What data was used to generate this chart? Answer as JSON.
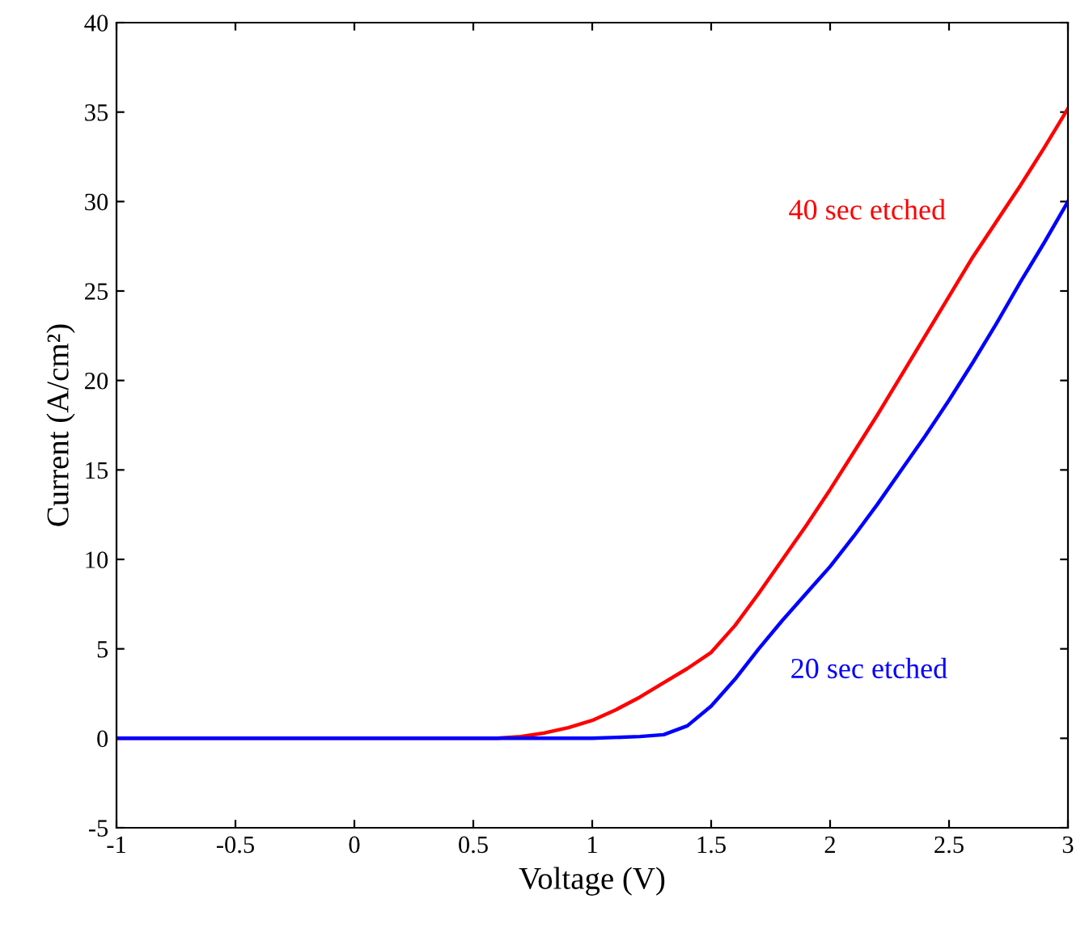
{
  "chart_data": {
    "type": "line",
    "xlabel": "Voltage (V)",
    "ylabel": "Current (A/cm²)",
    "xlim": [
      -1,
      3
    ],
    "ylim": [
      -5,
      40
    ],
    "xticks": [
      -1,
      -0.5,
      0,
      0.5,
      1,
      1.5,
      2,
      2.5,
      3
    ],
    "yticks": [
      -5,
      0,
      5,
      10,
      15,
      20,
      25,
      30,
      35,
      40
    ],
    "grid": false,
    "legend": false,
    "series": [
      {
        "name": "40 sec etched",
        "color": "#ff0000",
        "x": [
          -1,
          0,
          0.6,
          0.7,
          0.8,
          0.9,
          1.0,
          1.1,
          1.2,
          1.3,
          1.4,
          1.5,
          1.6,
          1.7,
          1.8,
          1.9,
          2.0,
          2.1,
          2.2,
          2.3,
          2.4,
          2.5,
          2.6,
          2.7,
          2.8,
          2.9,
          3.0
        ],
        "values": [
          0,
          0,
          0,
          0.1,
          0.3,
          0.6,
          1.0,
          1.6,
          2.3,
          3.1,
          3.9,
          4.8,
          6.3,
          8.1,
          10.0,
          11.9,
          13.9,
          16.0,
          18.1,
          20.3,
          22.5,
          24.7,
          26.9,
          28.9,
          30.9,
          33.0,
          35.2
        ]
      },
      {
        "name": "20 sec etched",
        "color": "#0000ff",
        "x": [
          -1,
          0,
          1.0,
          1.2,
          1.3,
          1.4,
          1.5,
          1.6,
          1.7,
          1.8,
          1.9,
          2.0,
          2.1,
          2.2,
          2.3,
          2.4,
          2.5,
          2.6,
          2.7,
          2.8,
          2.9,
          3.0
        ],
        "values": [
          0,
          0,
          0,
          0.1,
          0.2,
          0.7,
          1.8,
          3.3,
          5.0,
          6.6,
          8.1,
          9.6,
          11.3,
          13.1,
          15.0,
          16.9,
          18.9,
          21.0,
          23.2,
          25.5,
          27.7,
          30.0
        ]
      }
    ]
  }
}
